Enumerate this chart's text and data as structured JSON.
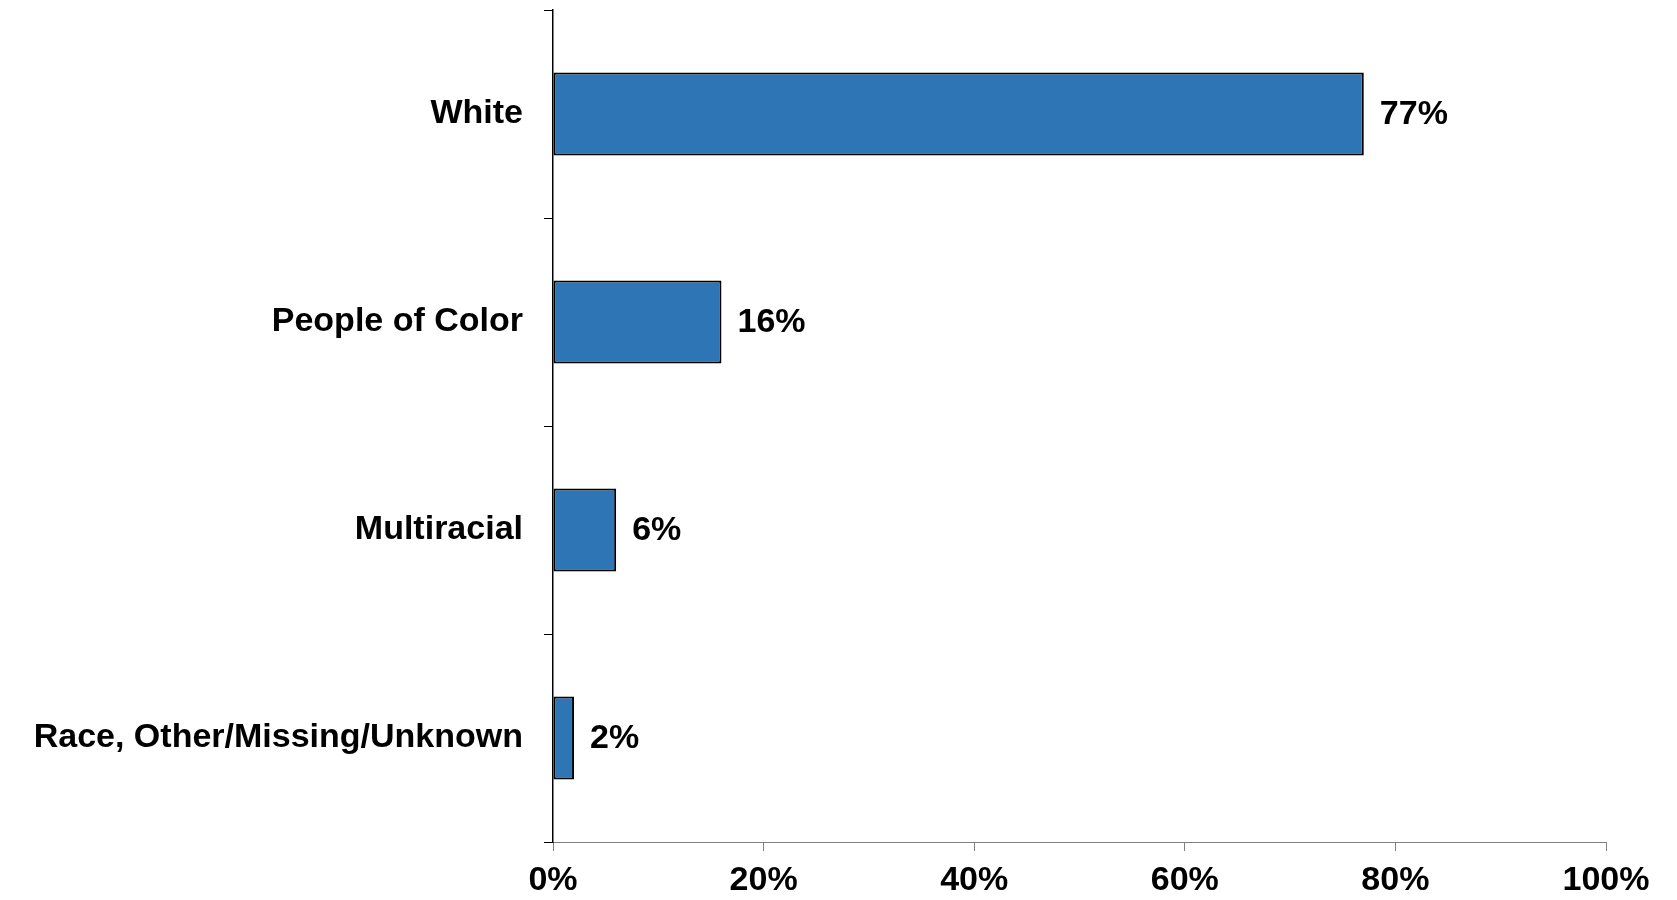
{
  "chart_data": {
    "type": "bar",
    "orientation": "horizontal",
    "categories": [
      "White",
      "People of Color",
      "Multiracial",
      "Race, Other/Missing/Unknown"
    ],
    "values": [
      77,
      16,
      6,
      2
    ],
    "color": "#2e75b6",
    "value_labels": [
      "77%",
      "16%",
      "6%",
      "2%"
    ],
    "xlim": [
      0,
      100
    ],
    "xticks": [
      {
        "value": 0,
        "label": "0%"
      },
      {
        "value": 20,
        "label": "20%"
      },
      {
        "value": 40,
        "label": "40%"
      },
      {
        "value": 60,
        "label": "60%"
      },
      {
        "value": 80,
        "label": "80%"
      },
      {
        "value": 100,
        "label": "100%"
      }
    ]
  }
}
